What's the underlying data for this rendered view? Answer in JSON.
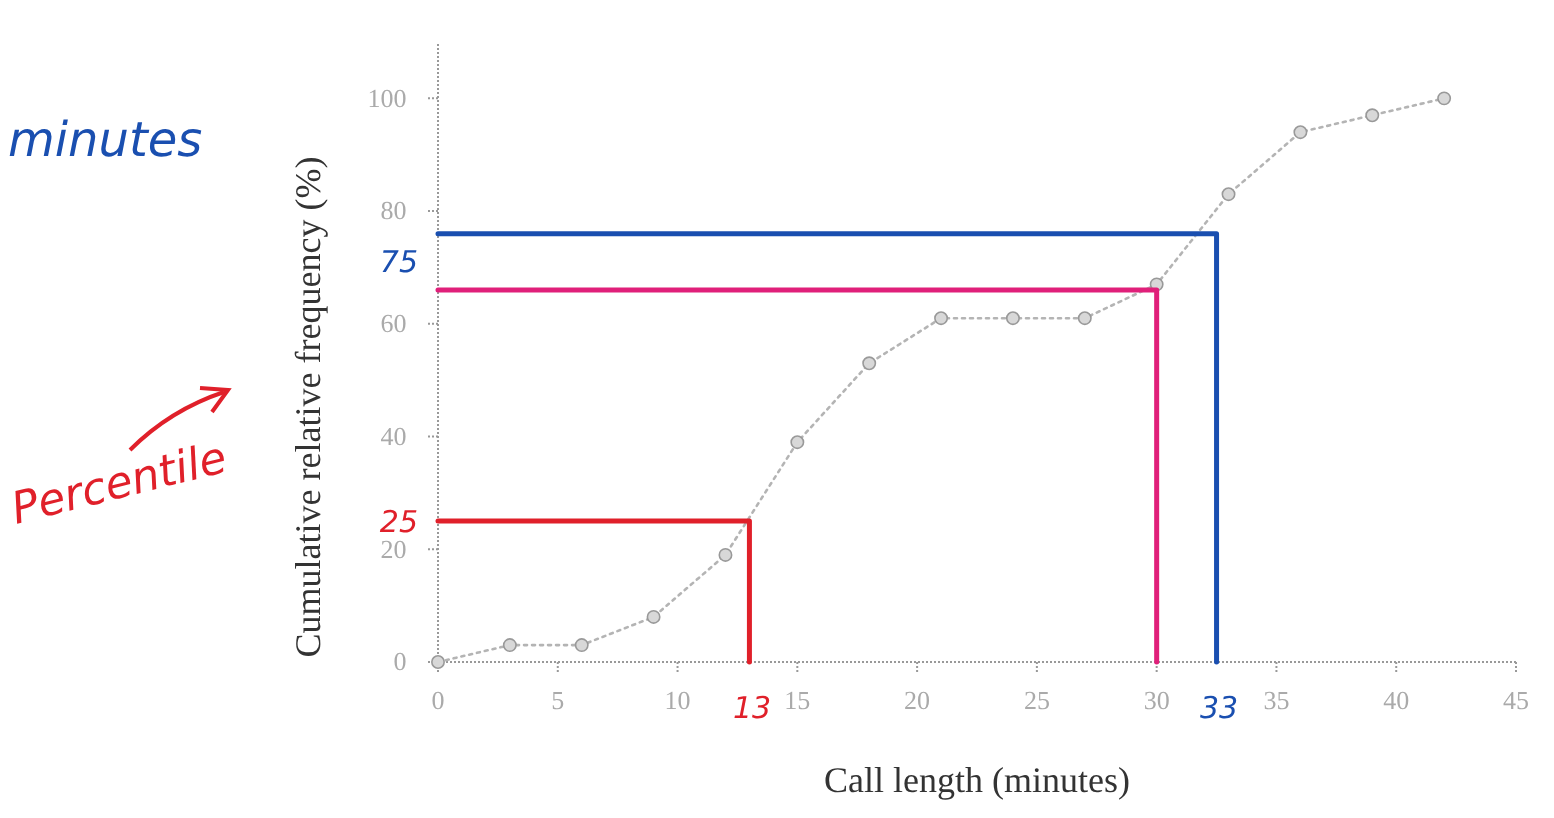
{
  "chart_data": {
    "type": "line",
    "xlabel": "Call length (minutes)",
    "ylabel": "Cumulative relative frequency (%)",
    "x": [
      0,
      3,
      6,
      9,
      12,
      15,
      18,
      21,
      24,
      27,
      30,
      33,
      36,
      39,
      42
    ],
    "series": [
      {
        "color": "#b4b4b4",
        "values": [
          0,
          3,
          3,
          8,
          19,
          39,
          53,
          61,
          61,
          61,
          67,
          83,
          94,
          97,
          100
        ],
        "marker": "circle",
        "line_style": "dotted"
      },
      {
        "color": "#e0202a",
        "x": [
          0,
          13,
          13
        ],
        "values": [
          25,
          25,
          0
        ],
        "marker": "none",
        "line_style": "solid"
      },
      {
        "color": "#e0207a",
        "x": [
          0,
          30,
          30
        ],
        "values": [
          66,
          66,
          0
        ],
        "marker": "none",
        "line_style": "solid"
      },
      {
        "color": "#1a4fb0",
        "x": [
          0,
          32.5,
          32.5
        ],
        "values": [
          76,
          76,
          0
        ],
        "marker": "none",
        "line_style": "solid"
      }
    ],
    "xlim": [
      0,
      45
    ],
    "xticks": [
      0,
      5,
      10,
      15,
      20,
      25,
      30,
      35,
      40,
      45
    ],
    "ylim": [
      0,
      110
    ],
    "yticks": [
      0,
      20,
      40,
      60,
      80,
      100
    ],
    "grid": false,
    "annotations": [
      "25",
      "75",
      "13",
      "33",
      "Percentile",
      "minutes"
    ]
  }
}
